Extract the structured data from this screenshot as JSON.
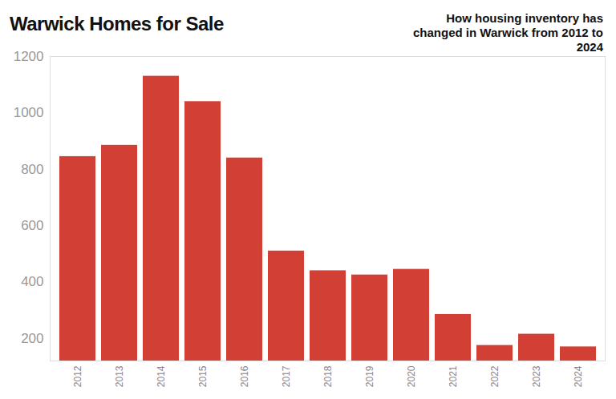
{
  "chart_data": {
    "type": "bar",
    "title": "Warwick Homes for Sale",
    "subtitle": "How housing inventory has changed in Warwick from 2012 to 2024",
    "categories": [
      "2012",
      "2013",
      "2014",
      "2015",
      "2016",
      "2017",
      "2018",
      "2019",
      "2020",
      "2021",
      "2022",
      "2023",
      "2024"
    ],
    "values": [
      845,
      885,
      1130,
      1040,
      840,
      510,
      440,
      425,
      445,
      285,
      175,
      215,
      170
    ],
    "color": "#d13f35",
    "ylim": [
      120,
      1200
    ],
    "yticks": [
      200,
      400,
      600,
      800,
      1000,
      1200
    ],
    "grid": false
  }
}
